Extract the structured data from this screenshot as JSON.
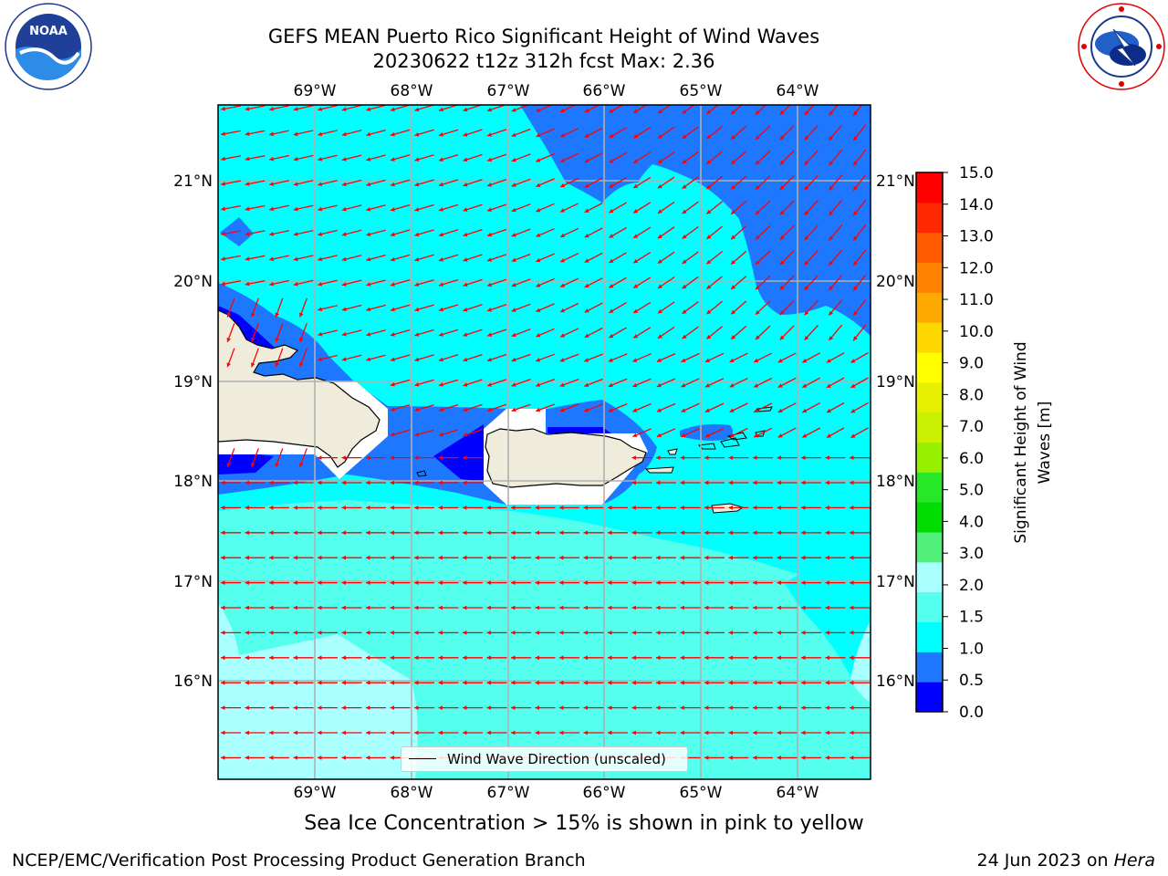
{
  "header": {
    "title_line1": "GEFS MEAN Puerto Rico Significant Height of Wind Waves",
    "title_line2": "20230622 t12z 312h fcst   Max: 2.36"
  },
  "logos": {
    "left": {
      "name": "NOAA",
      "ring_text": "NATIONAL OCEANIC AND ATMOSPHERIC ADMINISTRATION",
      "bottom_text": "U.S. DEPARTMENT OF COMMERCE"
    },
    "right": {
      "name": "NATIONAL WEATHER SERVICE"
    }
  },
  "map": {
    "lon_labels_top": [
      "69°W",
      "68°W",
      "67°W",
      "66°W",
      "65°W",
      "64°W"
    ],
    "lon_labels_bottom": [
      "69°W",
      "68°W",
      "67°W",
      "66°W",
      "65°W",
      "64°W"
    ],
    "lat_labels_left": [
      "21°N",
      "20°N",
      "19°N",
      "18°N",
      "17°N",
      "16°N"
    ],
    "lat_labels_right": [
      "21°N",
      "20°N",
      "19°N",
      "18°N",
      "17°N",
      "16°N"
    ],
    "legend_label": "Wind Wave Direction (unscaled)",
    "land_color": "#efecdc",
    "arrow_color": "#ff0000"
  },
  "colorbar": {
    "label": "Significant Height of Wind Waves [m]",
    "label_line1": "Significant Height of Wind",
    "label_line2": "Waves [m]",
    "ticks": [
      "0.0",
      "0.5",
      "1.0",
      "1.5",
      "2.0",
      "3.0",
      "4.0",
      "5.0",
      "6.0",
      "7.0",
      "8.0",
      "9.0",
      "10.0",
      "11.0",
      "12.0",
      "13.0",
      "14.0",
      "15.0"
    ],
    "colors": [
      "#0000ff",
      "#1e78ff",
      "#00ffff",
      "#55ffee",
      "#aaffff",
      "#50f07a",
      "#00dc00",
      "#28e628",
      "#96f000",
      "#c8f000",
      "#e6f000",
      "#ffff00",
      "#ffd700",
      "#ffaa00",
      "#ff8200",
      "#ff5a00",
      "#ff2800",
      "#ff0000"
    ]
  },
  "notes": {
    "sea_ice": "Sea Ice Concentration > 15% is shown in pink to yellow",
    "footer_left": "NCEP/EMC/Verification Post Processing Product Generation Branch",
    "footer_right_prefix": "24 Jun 2023 on ",
    "footer_right_host": "Hera"
  }
}
